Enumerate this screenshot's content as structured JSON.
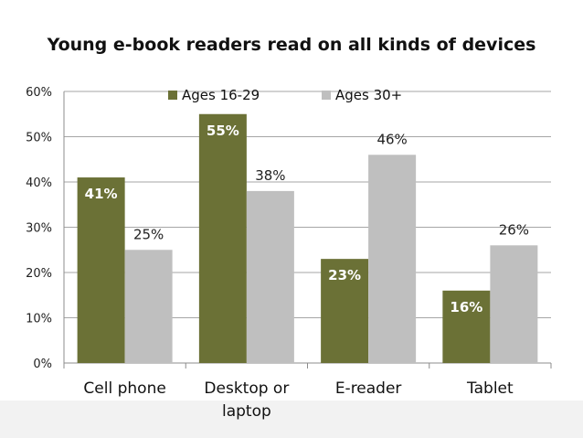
{
  "chart_data": {
    "type": "bar",
    "title": "Young e-book readers read on all kinds of devices",
    "categories": [
      "Cell phone",
      "Desktop or laptop",
      "E-reader",
      "Tablet"
    ],
    "category_lines": [
      [
        "Cell phone"
      ],
      [
        "Desktop or",
        "laptop"
      ],
      [
        "E-reader"
      ],
      [
        "Tablet"
      ]
    ],
    "series": [
      {
        "name": "Ages 16-29",
        "values": [
          41,
          55,
          23,
          16
        ],
        "labels": [
          "41%",
          "55%",
          "23%",
          "16%"
        ],
        "color": "#6b7136"
      },
      {
        "name": "Ages 30+",
        "values": [
          25,
          38,
          46,
          26
        ],
        "labels": [
          "25%",
          "38%",
          "46%",
          "26%"
        ],
        "color": "#bfbfbf"
      }
    ],
    "ylim": [
      0,
      60
    ],
    "yticks": [
      "0%",
      "10%",
      "20%",
      "30%",
      "40%",
      "50%",
      "60%"
    ],
    "grid": true,
    "legend_position": "top"
  }
}
